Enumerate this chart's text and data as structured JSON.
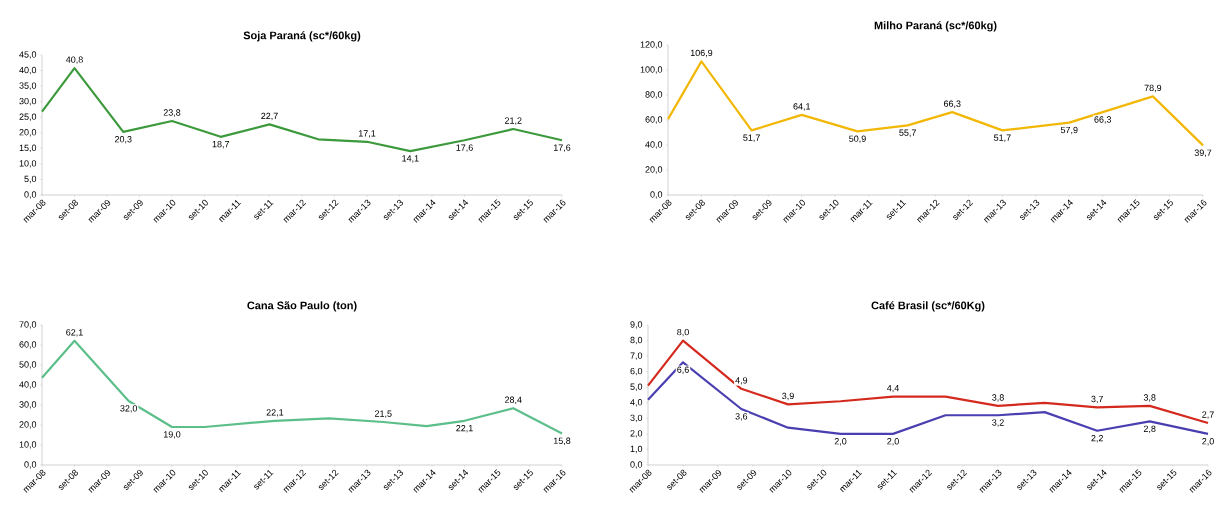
{
  "chart_data": [
    {
      "type": "line",
      "title": "Soja Paraná (sc*/60kg)",
      "color": "#3c9a3c",
      "marker": "none",
      "x": [
        "2008-03",
        "2008-09",
        "2009-06",
        "2010-03",
        "2010-12",
        "2011-09",
        "2012-06",
        "2013-03",
        "2013-11",
        "2014-09",
        "2015-06",
        "2016-03"
      ],
      "values": [
        26.8,
        40.8,
        20.3,
        23.8,
        18.7,
        22.7,
        17.9,
        17.1,
        14.1,
        17.6,
        21.2,
        17.6
      ],
      "value_labels": [
        null,
        "40,8",
        "20,3",
        "23,8",
        "18,7",
        "22,7",
        null,
        "17,1",
        "14,1",
        "17,6",
        "21,2",
        "17,6"
      ],
      "xlim": [
        "2008-03",
        "2016-03"
      ],
      "xticks": [
        {
          "value": "2008-03",
          "label": "mar-08"
        },
        {
          "value": "2008-09",
          "label": "set-08"
        },
        {
          "value": "2009-03",
          "label": "mar-09"
        },
        {
          "value": "2009-09",
          "label": "set-09"
        },
        {
          "value": "2010-03",
          "label": "mar-10"
        },
        {
          "value": "2010-09",
          "label": "set-10"
        },
        {
          "value": "2011-03",
          "label": "mar-11"
        },
        {
          "value": "2011-09",
          "label": "set-11"
        },
        {
          "value": "2012-03",
          "label": "mar-12"
        },
        {
          "value": "2012-09",
          "label": "set-12"
        },
        {
          "value": "2013-03",
          "label": "mar-13"
        },
        {
          "value": "2013-09",
          "label": "set-13"
        },
        {
          "value": "2014-03",
          "label": "mar-14"
        },
        {
          "value": "2014-09",
          "label": "set-14"
        },
        {
          "value": "2015-03",
          "label": "mar-15"
        },
        {
          "value": "2015-09",
          "label": "set-15"
        },
        {
          "value": "2016-03",
          "label": "mar-16"
        }
      ],
      "ylim": [
        0,
        45
      ],
      "yticks": [
        {
          "value": 0,
          "label": "0,0"
        },
        {
          "value": 5,
          "label": "5,0"
        },
        {
          "value": 10,
          "label": "10,0"
        },
        {
          "value": 15,
          "label": "15,0"
        },
        {
          "value": 20,
          "label": "20,0"
        },
        {
          "value": 25,
          "label": "25,0"
        },
        {
          "value": 30,
          "label": "30,0"
        },
        {
          "value": 35,
          "label": "35,0"
        },
        {
          "value": 40,
          "label": "40,0"
        },
        {
          "value": 45,
          "label": "45,0"
        }
      ]
    },
    {
      "type": "line",
      "title": "Milho Paraná (sc*/60kg)",
      "color": "#f2b705",
      "marker": "none",
      "x": [
        "2008-03",
        "2008-09",
        "2009-06",
        "2010-03",
        "2011-01",
        "2011-10",
        "2012-06",
        "2013-03",
        "2014-03",
        "2014-09",
        "2015-06",
        "2016-03"
      ],
      "values": [
        60.7,
        106.9,
        51.7,
        64.1,
        50.9,
        55.7,
        66.3,
        51.7,
        57.9,
        66.3,
        78.9,
        39.7
      ],
      "value_labels": [
        null,
        "106,9",
        "51,7",
        "64,1",
        "50,9",
        "55,7",
        "66,3",
        "51,7",
        "57,9",
        "66,3",
        "78,9",
        "39,7"
      ],
      "xlim": [
        "2008-03",
        "2016-03"
      ],
      "xticks": [
        {
          "value": "2008-03",
          "label": "mar-08"
        },
        {
          "value": "2008-09",
          "label": "set-08"
        },
        {
          "value": "2009-03",
          "label": "mar-09"
        },
        {
          "value": "2009-09",
          "label": "set-09"
        },
        {
          "value": "2010-03",
          "label": "mar-10"
        },
        {
          "value": "2010-09",
          "label": "set-10"
        },
        {
          "value": "2011-03",
          "label": "mar-11"
        },
        {
          "value": "2011-09",
          "label": "set-11"
        },
        {
          "value": "2012-03",
          "label": "mar-12"
        },
        {
          "value": "2012-09",
          "label": "set-12"
        },
        {
          "value": "2013-03",
          "label": "mar-13"
        },
        {
          "value": "2013-09",
          "label": "set-13"
        },
        {
          "value": "2014-03",
          "label": "mar-14"
        },
        {
          "value": "2014-09",
          "label": "set-14"
        },
        {
          "value": "2015-03",
          "label": "mar-15"
        },
        {
          "value": "2015-09",
          "label": "set-15"
        },
        {
          "value": "2016-03",
          "label": "mar-16"
        }
      ],
      "ylim": [
        0,
        120
      ],
      "yticks": [
        {
          "value": 0,
          "label": "0,0"
        },
        {
          "value": 20,
          "label": "20,0"
        },
        {
          "value": 40,
          "label": "40,0"
        },
        {
          "value": 60,
          "label": "60,0"
        },
        {
          "value": 80,
          "label": "80,0"
        },
        {
          "value": 100,
          "label": "100,0"
        },
        {
          "value": 120,
          "label": "120,0"
        }
      ]
    },
    {
      "type": "line",
      "title": "Cana São Paulo (ton)",
      "color": "#5cbf8a",
      "marker": "none",
      "x": [
        "2008-03",
        "2008-09",
        "2009-07",
        "2010-03",
        "2010-09",
        "2011-10",
        "2012-08",
        "2013-06",
        "2014-02",
        "2014-09",
        "2015-06",
        "2016-03"
      ],
      "values": [
        43.6,
        62.1,
        32.0,
        19.0,
        19.0,
        22.1,
        23.3,
        21.5,
        19.4,
        22.1,
        28.4,
        15.8
      ],
      "value_labels": [
        null,
        "62,1",
        "32,0",
        "19,0",
        null,
        "22,1",
        null,
        "21,5",
        null,
        "22,1",
        "28,4",
        "15,8"
      ],
      "xlim": [
        "2008-03",
        "2016-03"
      ],
      "xticks": [
        {
          "value": "2008-03",
          "label": "mar-08"
        },
        {
          "value": "2008-09",
          "label": "set-08"
        },
        {
          "value": "2009-03",
          "label": "mar-09"
        },
        {
          "value": "2009-09",
          "label": "set-09"
        },
        {
          "value": "2010-03",
          "label": "mar-10"
        },
        {
          "value": "2010-09",
          "label": "set-10"
        },
        {
          "value": "2011-03",
          "label": "mar-11"
        },
        {
          "value": "2011-09",
          "label": "set-11"
        },
        {
          "value": "2012-03",
          "label": "mar-12"
        },
        {
          "value": "2012-09",
          "label": "set-12"
        },
        {
          "value": "2013-03",
          "label": "mar-13"
        },
        {
          "value": "2013-09",
          "label": "set-13"
        },
        {
          "value": "2014-03",
          "label": "mar-14"
        },
        {
          "value": "2014-09",
          "label": "set-14"
        },
        {
          "value": "2015-03",
          "label": "mar-15"
        },
        {
          "value": "2015-09",
          "label": "set-15"
        },
        {
          "value": "2016-03",
          "label": "mar-16"
        }
      ],
      "ylim": [
        0,
        70
      ],
      "yticks": [
        {
          "value": 0,
          "label": "0,0"
        },
        {
          "value": 10,
          "label": "10,0"
        },
        {
          "value": 20,
          "label": "20,0"
        },
        {
          "value": 30,
          "label": "30,0"
        },
        {
          "value": 40,
          "label": "40,0"
        },
        {
          "value": 50,
          "label": "50,0"
        },
        {
          "value": 60,
          "label": "60,0"
        },
        {
          "value": 70,
          "label": "70,0"
        }
      ]
    },
    {
      "type": "line",
      "title": "Café Brasil (sc*/60Kg)",
      "marker": "none",
      "x": [
        "2008-03",
        "2008-09",
        "2009-07",
        "2010-03",
        "2010-12",
        "2011-09",
        "2012-06",
        "2013-03",
        "2013-11",
        "2014-08",
        "2015-05",
        "2016-03"
      ],
      "series": [
        {
          "color": "#d42a1e",
          "values": [
            5.1,
            8.0,
            4.9,
            3.9,
            4.1,
            4.4,
            4.4,
            3.8,
            4.0,
            3.7,
            3.8,
            2.7
          ],
          "value_labels": [
            null,
            "8,0",
            "4,9",
            "3,9",
            null,
            "4,4",
            null,
            "3,8",
            null,
            "3,7",
            "3,8",
            "2,7"
          ]
        },
        {
          "color": "#4a3fb0",
          "values": [
            4.2,
            6.6,
            3.6,
            2.4,
            2.0,
            2.0,
            3.2,
            3.2,
            3.4,
            2.2,
            2.8,
            2.0
          ],
          "value_labels": [
            null,
            "6,6",
            "3,6",
            null,
            "2,0",
            "2,0",
            null,
            "3,2",
            null,
            "2,2",
            "2,8",
            "2,0"
          ]
        }
      ],
      "xlim": [
        "2008-03",
        "2016-03"
      ],
      "xticks": [
        {
          "value": "2008-03",
          "label": "mar-08"
        },
        {
          "value": "2008-09",
          "label": "set-08"
        },
        {
          "value": "2009-03",
          "label": "mar-09"
        },
        {
          "value": "2009-09",
          "label": "set-09"
        },
        {
          "value": "2010-03",
          "label": "mar-10"
        },
        {
          "value": "2010-09",
          "label": "set-10"
        },
        {
          "value": "2011-03",
          "label": "mar-11"
        },
        {
          "value": "2011-09",
          "label": "set-11"
        },
        {
          "value": "2012-03",
          "label": "mar-12"
        },
        {
          "value": "2012-09",
          "label": "set-12"
        },
        {
          "value": "2013-03",
          "label": "mar-13"
        },
        {
          "value": "2013-09",
          "label": "set-13"
        },
        {
          "value": "2014-03",
          "label": "mar-14"
        },
        {
          "value": "2014-09",
          "label": "set-14"
        },
        {
          "value": "2015-03",
          "label": "mar-15"
        },
        {
          "value": "2015-09",
          "label": "set-15"
        },
        {
          "value": "2016-03",
          "label": "mar-16"
        }
      ],
      "ylim": [
        0,
        9
      ],
      "yticks": [
        {
          "value": 0,
          "label": "0,0"
        },
        {
          "value": 1,
          "label": "1,0"
        },
        {
          "value": 2,
          "label": "2,0"
        },
        {
          "value": 3,
          "label": "3,0"
        },
        {
          "value": 4,
          "label": "4,0"
        },
        {
          "value": 5,
          "label": "5,0"
        },
        {
          "value": 6,
          "label": "6,0"
        },
        {
          "value": 7,
          "label": "7,0"
        },
        {
          "value": 8,
          "label": "8,0"
        },
        {
          "value": 9,
          "label": "9,0"
        }
      ]
    }
  ]
}
